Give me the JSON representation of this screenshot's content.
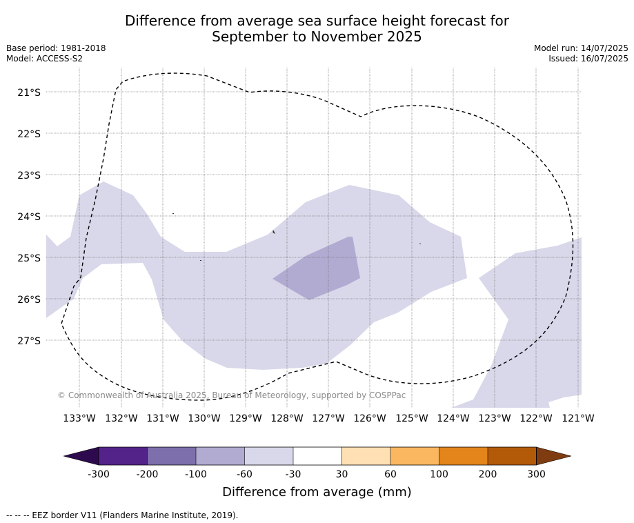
{
  "title": {
    "line1": "Difference from average sea surface height forecast for",
    "line2": "September to November 2025"
  },
  "meta_left": {
    "base_period": "Base period: 1981-2018",
    "model": "Model: ACCESS-S2"
  },
  "meta_right": {
    "model_run": "Model run: 14/07/2025",
    "issued": "Issued: 16/07/2025"
  },
  "map": {
    "lat_labels": [
      "21°S",
      "22°S",
      "23°S",
      "24°S",
      "25°S",
      "26°S",
      "27°S"
    ],
    "lon_labels": [
      "133°W",
      "132°W",
      "131°W",
      "130°W",
      "129°W",
      "128°W",
      "127°W",
      "126°W",
      "125°W",
      "124°W",
      "123°W",
      "122°W",
      "121°W"
    ],
    "credit": "© Commonwealth of Australia 2025, Bureau of Meteorology, supported by COSPPac",
    "eez_border_style": "dashed black",
    "colors": {
      "light_negative": "#d8d8ea",
      "mid_negative": "#b1abd2"
    }
  },
  "colorbar": {
    "ticks": [
      "-300",
      "-200",
      "-100",
      "-60",
      "-30",
      "30",
      "60",
      "100",
      "200",
      "300"
    ],
    "colors": [
      "#2d0a4e",
      "#54238a",
      "#7d6fab",
      "#b1abd2",
      "#d8d8ea",
      "#ffffff",
      "#ffe0b4",
      "#fbb75f",
      "#e3851b",
      "#b35a08",
      "#7f3c10"
    ],
    "label": "Difference from average (mm)"
  },
  "footnote": "-- -- -- EEZ border V11 (Flanders Marine Institute, 2019)."
}
